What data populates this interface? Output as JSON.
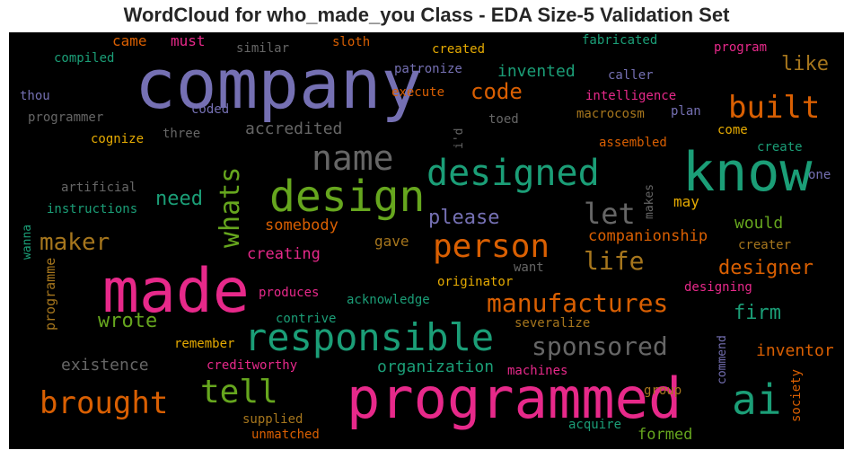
{
  "chart_data": {
    "type": "wordcloud",
    "title": "WordCloud for who_made_you Class - EDA Size-5 Validation Set",
    "background": "#000000",
    "palette": [
      "#1b9e77",
      "#d95f02",
      "#7570b3",
      "#e7298a",
      "#66a61e",
      "#e6ab02",
      "#a6761d",
      "#666666"
    ],
    "words": [
      {
        "text": "company",
        "weight": 76,
        "color": "#7570b3"
      },
      {
        "text": "made",
        "weight": 68,
        "color": "#e7298a"
      },
      {
        "text": "programmed",
        "weight": 62,
        "color": "#e7298a"
      },
      {
        "text": "know",
        "weight": 60,
        "color": "#1b9e77"
      },
      {
        "text": "design",
        "weight": 48,
        "color": "#66a61e"
      },
      {
        "text": "responsible",
        "weight": 42,
        "color": "#1b9e77"
      },
      {
        "text": "ai",
        "weight": 46,
        "color": "#1b9e77"
      },
      {
        "text": "designed",
        "weight": 40,
        "color": "#1b9e77"
      },
      {
        "text": "name",
        "weight": 38,
        "color": "#666666"
      },
      {
        "text": "person",
        "weight": 36,
        "color": "#d95f02"
      },
      {
        "text": "tell",
        "weight": 36,
        "color": "#66a61e"
      },
      {
        "text": "brought",
        "weight": 34,
        "color": "#d95f02"
      },
      {
        "text": "built",
        "weight": 34,
        "color": "#d95f02"
      },
      {
        "text": "whats",
        "weight": 30,
        "color": "#66a61e"
      },
      {
        "text": "let",
        "weight": 32,
        "color": "#666666"
      },
      {
        "text": "manufactures",
        "weight": 28,
        "color": "#d95f02"
      },
      {
        "text": "sponsored",
        "weight": 28,
        "color": "#666666"
      },
      {
        "text": "life",
        "weight": 28,
        "color": "#a6761d"
      },
      {
        "text": "maker",
        "weight": 26,
        "color": "#a6761d"
      },
      {
        "text": "code",
        "weight": 24,
        "color": "#d95f02"
      },
      {
        "text": "designer",
        "weight": 22,
        "color": "#d95f02"
      },
      {
        "text": "firm",
        "weight": 22,
        "color": "#1b9e77"
      },
      {
        "text": "wrote",
        "weight": 22,
        "color": "#66a61e"
      },
      {
        "text": "please",
        "weight": 22,
        "color": "#7570b3"
      },
      {
        "text": "need",
        "weight": 22,
        "color": "#1b9e77"
      },
      {
        "text": "like",
        "weight": 22,
        "color": "#a6761d"
      },
      {
        "text": "inventor",
        "weight": 18,
        "color": "#d95f02"
      },
      {
        "text": "organization",
        "weight": 18,
        "color": "#1b9e77"
      },
      {
        "text": "existence",
        "weight": 18,
        "color": "#666666"
      },
      {
        "text": "companionship",
        "weight": 17,
        "color": "#d95f02"
      },
      {
        "text": "accredited",
        "weight": 18,
        "color": "#666666"
      },
      {
        "text": "invented",
        "weight": 18,
        "color": "#1b9e77"
      },
      {
        "text": "creating",
        "weight": 17,
        "color": "#e7298a"
      },
      {
        "text": "somebody",
        "weight": 17,
        "color": "#d95f02"
      },
      {
        "text": "would",
        "weight": 18,
        "color": "#66a61e"
      },
      {
        "text": "formed",
        "weight": 17,
        "color": "#66a61e"
      },
      {
        "text": "came",
        "weight": 16,
        "color": "#d95f02"
      },
      {
        "text": "must",
        "weight": 16,
        "color": "#e7298a"
      },
      {
        "text": "programme",
        "weight": 15,
        "color": "#a6761d"
      },
      {
        "text": "gave",
        "weight": 16,
        "color": "#a6761d"
      },
      {
        "text": "may",
        "weight": 16,
        "color": "#e6ab02"
      },
      {
        "text": "acknowledge",
        "weight": 14,
        "color": "#1b9e77"
      },
      {
        "text": "contrive",
        "weight": 14,
        "color": "#1b9e77"
      },
      {
        "text": "remember",
        "weight": 14,
        "color": "#e6ab02"
      },
      {
        "text": "creditworthy",
        "weight": 14,
        "color": "#e7298a"
      },
      {
        "text": "produces",
        "weight": 14,
        "color": "#e7298a"
      },
      {
        "text": "originator",
        "weight": 14,
        "color": "#e6ab02"
      },
      {
        "text": "severalize",
        "weight": 14,
        "color": "#a6761d"
      },
      {
        "text": "machines",
        "weight": 14,
        "color": "#e7298a"
      },
      {
        "text": "supplied",
        "weight": 14,
        "color": "#a6761d"
      },
      {
        "text": "unmatched",
        "weight": 14,
        "color": "#d95f02"
      },
      {
        "text": "acquire",
        "weight": 14,
        "color": "#1b9e77"
      },
      {
        "text": "group",
        "weight": 14,
        "color": "#a6761d"
      },
      {
        "text": "society",
        "weight": 14,
        "color": "#d95f02"
      },
      {
        "text": "commend",
        "weight": 13,
        "color": "#7570b3"
      },
      {
        "text": "designing",
        "weight": 14,
        "color": "#e7298a"
      },
      {
        "text": "creater",
        "weight": 14,
        "color": "#a6761d"
      },
      {
        "text": "want",
        "weight": 14,
        "color": "#666666"
      },
      {
        "text": "create",
        "weight": 14,
        "color": "#1b9e77"
      },
      {
        "text": "come",
        "weight": 14,
        "color": "#e6ab02"
      },
      {
        "text": "one",
        "weight": 14,
        "color": "#7570b3"
      },
      {
        "text": "assembled",
        "weight": 14,
        "color": "#d95f02"
      },
      {
        "text": "macrocosm",
        "weight": 14,
        "color": "#a6761d"
      },
      {
        "text": "plan",
        "weight": 14,
        "color": "#7570b3"
      },
      {
        "text": "intelligence",
        "weight": 14,
        "color": "#e7298a"
      },
      {
        "text": "caller",
        "weight": 14,
        "color": "#7570b3"
      },
      {
        "text": "program",
        "weight": 14,
        "color": "#e7298a"
      },
      {
        "text": "fabricated",
        "weight": 14,
        "color": "#1b9e77"
      },
      {
        "text": "created",
        "weight": 14,
        "color": "#e6ab02"
      },
      {
        "text": "patronize",
        "weight": 14,
        "color": "#7570b3"
      },
      {
        "text": "execute",
        "weight": 14,
        "color": "#d95f02"
      },
      {
        "text": "toed",
        "weight": 14,
        "color": "#666666"
      },
      {
        "text": "i'd",
        "weight": 13,
        "color": "#666666"
      },
      {
        "text": "makes",
        "weight": 13,
        "color": "#666666"
      },
      {
        "text": "sloth",
        "weight": 14,
        "color": "#d95f02"
      },
      {
        "text": "similar",
        "weight": 14,
        "color": "#666666"
      },
      {
        "text": "coded",
        "weight": 14,
        "color": "#7570b3"
      },
      {
        "text": "compiled",
        "weight": 14,
        "color": "#1b9e77"
      },
      {
        "text": "thou",
        "weight": 14,
        "color": "#7570b3"
      },
      {
        "text": "programmer",
        "weight": 14,
        "color": "#666666"
      },
      {
        "text": "cognize",
        "weight": 14,
        "color": "#e6ab02"
      },
      {
        "text": "three",
        "weight": 14,
        "color": "#666666"
      },
      {
        "text": "artificial",
        "weight": 14,
        "color": "#666666"
      },
      {
        "text": "instructions",
        "weight": 14,
        "color": "#1b9e77"
      },
      {
        "text": "wanna",
        "weight": 13,
        "color": "#1b9e77"
      }
    ]
  }
}
